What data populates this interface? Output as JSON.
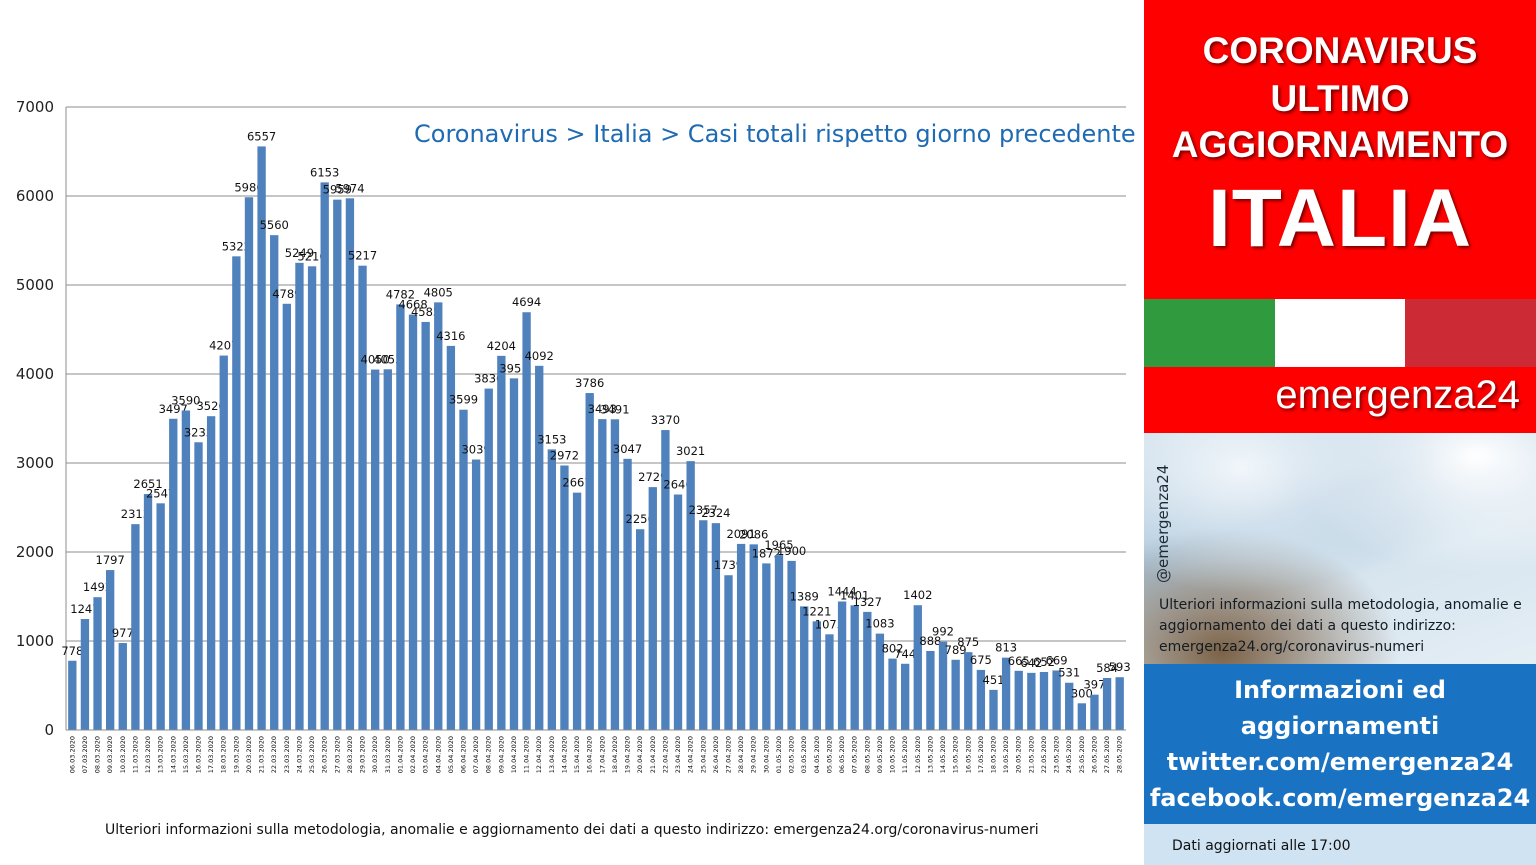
{
  "panel": {
    "headline": [
      "CORONAVIRUS",
      "ULTIMO",
      "AGGIORNAMENTO",
      "ITALIA"
    ],
    "brand": "emergenza24",
    "handle": "@emergenza24",
    "info_small": "Ulteriori informazioni sulla metodologia, anomalie e aggiornamento dei dati a questo indirizzo: emergenza24.org/coronavirus-numeri",
    "links": [
      "Informazioni ed",
      "aggiornamenti",
      "twitter.com/emergenza24",
      "facebook.com/emergenza24"
    ],
    "updated": "Dati aggiornati alle 17:00",
    "colors": {
      "red": "#ff0000",
      "flag_green": "#2f9a3e",
      "flag_white": "#ffffff",
      "flag_red": "#cc2b36",
      "blue": "#1a72c2"
    }
  },
  "footnote": "Ulteriori informazioni sulla metodologia, anomalie e aggiornamento dei dati a questo indirizzo: emergenza24.org/coronavirus-numeri",
  "chart_data": {
    "type": "bar",
    "title": "Coronavirus > Italia > Casi totali rispetto giorno precedente",
    "xlabel": "",
    "ylabel": "",
    "ylim": [
      0,
      7000
    ],
    "yticks": [
      0,
      1000,
      2000,
      3000,
      4000,
      5000,
      6000,
      7000
    ],
    "grid": true,
    "legend": "none",
    "bar_color": "#4f81bd",
    "categories": [
      "06.03.2020",
      "07.03.2020",
      "08.03.2020",
      "09.03.2020",
      "10.03.2020",
      "11.03.2020",
      "12.03.2020",
      "13.03.2020",
      "14.03.2020",
      "15.03.2020",
      "16.03.2020",
      "17.03.2020",
      "18.03.2020",
      "19.03.2020",
      "20.03.2020",
      "21.03.2020",
      "22.03.2020",
      "23.03.2020",
      "24.03.2020",
      "25.03.2020",
      "26.03.2020",
      "27.03.2020",
      "28.03.2020",
      "29.03.2020",
      "30.03.2020",
      "31.03.2020",
      "01.04.2020",
      "02.04.2020",
      "03.04.2020",
      "04.04.2020",
      "05.04.2020",
      "06.04.2020",
      "07.04.2020",
      "08.04.2020",
      "09.04.2020",
      "10.04.2020",
      "11.04.2020",
      "12.04.2020",
      "13.04.2020",
      "14.04.2020",
      "15.04.2020",
      "16.04.2020",
      "17.04.2020",
      "18.04.2020",
      "19.04.2020",
      "20.04.2020",
      "21.04.2020",
      "22.04.2020",
      "23.04.2020",
      "24.04.2020",
      "25.04.2020",
      "26.04.2020",
      "27.04.2020",
      "28.04.2020",
      "29.04.2020",
      "30.04.2020",
      "01.05.2020",
      "02.05.2020",
      "03.05.2020",
      "04.05.2020",
      "05.05.2020",
      "06.05.2020",
      "07.05.2020",
      "08.05.2020",
      "09.05.2020",
      "10.05.2020",
      "11.05.2020",
      "12.05.2020",
      "13.05.2020",
      "14.05.2020",
      "15.05.2020",
      "16.05.2020",
      "17.05.2020",
      "18.05.2020",
      "19.05.2020",
      "20.05.2020",
      "21.05.2020",
      "22.05.2020",
      "23.05.2020",
      "24.05.2020",
      "25.05.2020",
      "26.05.2020",
      "27.05.2020",
      "28.05.2020"
    ],
    "values": [
      778,
      1247,
      1492,
      1797,
      977,
      2313,
      2651,
      2547,
      3497,
      3590,
      3233,
      3526,
      4207,
      5322,
      5986,
      6557,
      5560,
      4789,
      5249,
      5210,
      6153,
      5959,
      5974,
      5217,
      4050,
      4053,
      4782,
      4668,
      4585,
      4805,
      4316,
      3599,
      3039,
      3836,
      4204,
      3951,
      4694,
      4092,
      3153,
      2972,
      2667,
      3786,
      3493,
      3491,
      3047,
      2256,
      2729,
      3370,
      2646,
      3021,
      2357,
      2324,
      1739,
      2091,
      2086,
      1872,
      1965,
      1900,
      1389,
      1221,
      1075,
      1444,
      1401,
      1327,
      1083,
      802,
      744,
      1402,
      888,
      992,
      789,
      875,
      675,
      451,
      813,
      665,
      642,
      652,
      669,
      531,
      300,
      397,
      584,
      593
    ]
  }
}
